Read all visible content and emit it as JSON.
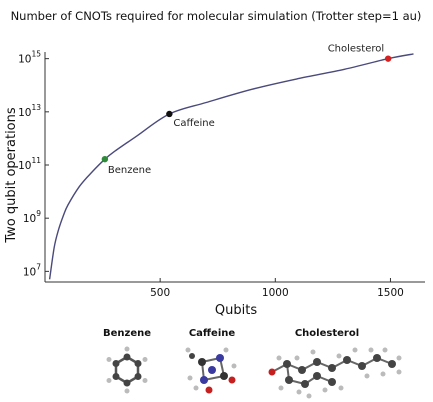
{
  "chart_data": {
    "type": "line",
    "title": "Number of CNOTs required for molecular simulation (Trotter step=1 au)",
    "xlabel": "Qubits",
    "ylabel": "Two qubit operations",
    "xlim": [
      0,
      1650
    ],
    "ylim_log10": [
      6.6,
      15.25
    ],
    "yscale": "log",
    "grid": false,
    "x_ticks": [
      "500",
      "1000",
      "1500"
    ],
    "x_tick_values": [
      500,
      1000,
      1500
    ],
    "y_tick_exponents": [
      7,
      9,
      11,
      13,
      15
    ],
    "y_tick_base": "10",
    "curve": {
      "color": "#4a4a7c",
      "x": [
        20,
        40,
        60,
        80,
        100,
        150,
        200,
        260,
        300,
        400,
        540,
        700,
        900,
        1100,
        1300,
        1490,
        1600
      ],
      "log10_y": [
        6.7,
        7.9,
        8.6,
        9.1,
        9.5,
        10.2,
        10.7,
        11.22,
        11.5,
        12.1,
        12.92,
        13.35,
        13.85,
        14.25,
        14.6,
        15.0,
        15.18
      ]
    },
    "points": [
      {
        "label": "Benzene",
        "x": 260,
        "log10_y": 11.22,
        "color": "#2f8a3a"
      },
      {
        "label": "Caffeine",
        "x": 540,
        "log10_y": 12.92,
        "color": "#111111"
      },
      {
        "label": "Cholesterol",
        "x": 1490,
        "log10_y": 15.0,
        "color": "#d42222"
      }
    ]
  },
  "molecules": [
    "Benzene",
    "Caffeine",
    "Cholesterol"
  ]
}
